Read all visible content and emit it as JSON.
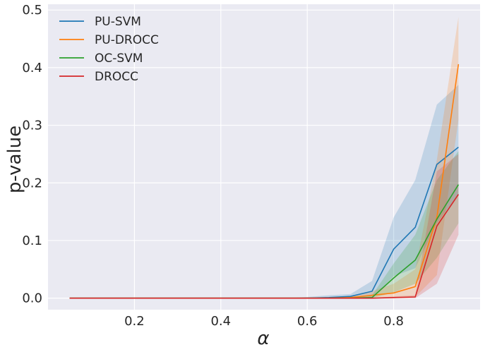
{
  "chart_data": {
    "type": "line",
    "title": "",
    "xlabel": "α",
    "ylabel": "p-value",
    "xlim": [
      0.0,
      1.0
    ],
    "ylim": [
      -0.02,
      0.51
    ],
    "xticks": [
      "0.2",
      "0.4",
      "0.6",
      "0.8"
    ],
    "yticks": [
      "0.0",
      "0.1",
      "0.2",
      "0.3",
      "0.4",
      "0.5"
    ],
    "grid": true,
    "legend_position": "top-left",
    "x": [
      0.05,
      0.1,
      0.15,
      0.2,
      0.25,
      0.3,
      0.35,
      0.4,
      0.45,
      0.5,
      0.55,
      0.6,
      0.65,
      0.7,
      0.75,
      0.8,
      0.85,
      0.9,
      0.95
    ],
    "series": [
      {
        "name": "PU-SVM",
        "color": "#1f77b4",
        "values": [
          0,
          0,
          0,
          0,
          0,
          0,
          0,
          0,
          0,
          0,
          0,
          0,
          0.001,
          0.003,
          0.012,
          0.085,
          0.123,
          0.232,
          0.262
        ],
        "lower": [
          0,
          0,
          0,
          0,
          0,
          0,
          0,
          0,
          0,
          0,
          0,
          0,
          0,
          0,
          0,
          0.038,
          0.052,
          0.13,
          0.18
        ],
        "upper": [
          0,
          0,
          0,
          0,
          0,
          0,
          0,
          0,
          0,
          0,
          0,
          0.002,
          0.005,
          0.007,
          0.03,
          0.14,
          0.205,
          0.336,
          0.37
        ]
      },
      {
        "name": "PU-DROCC",
        "color": "#ff7f0e",
        "values": [
          0,
          0,
          0,
          0,
          0,
          0,
          0,
          0,
          0,
          0,
          0,
          0,
          0,
          0.001,
          0.005,
          0.009,
          0.02,
          0.14,
          0.406
        ],
        "lower": [
          0,
          0,
          0,
          0,
          0,
          0,
          0,
          0,
          0,
          0,
          0,
          0,
          0,
          0,
          0,
          0,
          0.002,
          0.04,
          0.31
        ],
        "upper": [
          0,
          0,
          0,
          0,
          0,
          0,
          0,
          0,
          0,
          0,
          0,
          0,
          0.001,
          0.003,
          0.012,
          0.025,
          0.05,
          0.24,
          0.488
        ]
      },
      {
        "name": "OC-SVM",
        "color": "#2ca02c",
        "values": [
          0,
          0,
          0,
          0,
          0,
          0,
          0,
          0,
          0,
          0,
          0,
          0,
          0,
          0,
          0.001,
          0.035,
          0.066,
          0.137,
          0.197
        ],
        "lower": [
          0,
          0,
          0,
          0,
          0,
          0,
          0,
          0,
          0,
          0,
          0,
          0,
          0,
          0,
          0,
          0.01,
          0.025,
          0.07,
          0.13
        ],
        "upper": [
          0,
          0,
          0,
          0,
          0,
          0,
          0,
          0,
          0,
          0,
          0,
          0,
          0,
          0.002,
          0.005,
          0.06,
          0.11,
          0.205,
          0.255
        ]
      },
      {
        "name": "DROCC",
        "color": "#d62728",
        "values": [
          0,
          0,
          0,
          0,
          0,
          0,
          0,
          0,
          0,
          0,
          0,
          0,
          0,
          0,
          0,
          0.001,
          0.002,
          0.125,
          0.18
        ],
        "lower": [
          0,
          0,
          0,
          0,
          0,
          0,
          0,
          0,
          0,
          0,
          0,
          0,
          0,
          0,
          0,
          0,
          0,
          0.025,
          0.11
        ],
        "upper": [
          0,
          0,
          0,
          0,
          0,
          0,
          0,
          0,
          0,
          0,
          0,
          0,
          0,
          0,
          0,
          0.003,
          0.005,
          0.22,
          0.25
        ]
      }
    ]
  }
}
